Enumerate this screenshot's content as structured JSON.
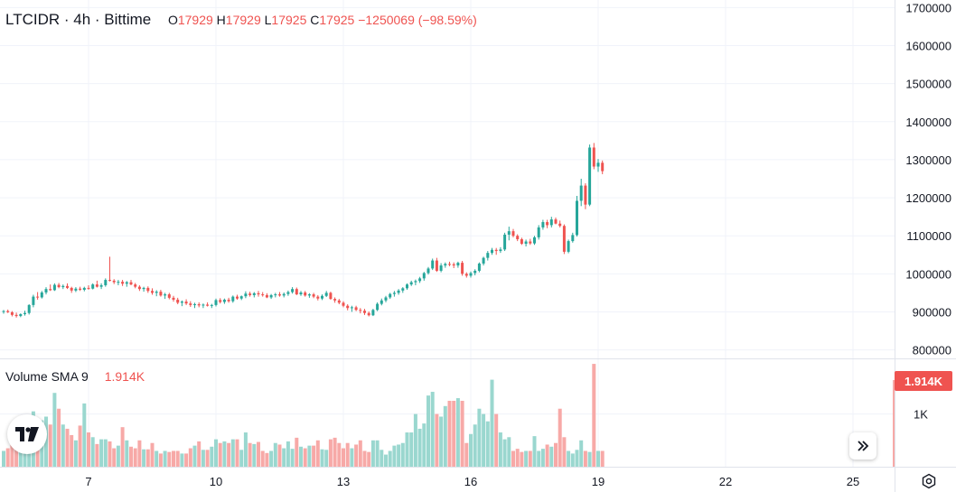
{
  "header": {
    "symbol_line": "LTCIDR · 4h · Bittime",
    "open_label": "O",
    "open_value": "17929",
    "high_label": "H",
    "high_value": "17929",
    "low_label": "L",
    "low_value": "17925",
    "close_label": "C",
    "close_value": "17925",
    "change": "−1250069 (−98.59%)"
  },
  "volume_pane": {
    "title": "Volume SMA 9",
    "value": "1.914K",
    "badge": "1.914K",
    "axis_label": "1K"
  },
  "icons": {
    "logo": "tradingview-logo-icon",
    "scroll": "chevron-double-right-icon",
    "settings": "gear-icon"
  },
  "colors": {
    "up": "#26a69a",
    "down": "#ef5350",
    "volume_up": "#9ad7cf",
    "volume_down": "#f7a9a7",
    "grid": "#f0f3fa",
    "axis_text": "#131722"
  },
  "chart_data": {
    "type": "candlestick",
    "interval": "4h",
    "price_axis": {
      "range": [
        780000,
        1720000
      ],
      "ticks": [
        800000,
        900000,
        1000000,
        1100000,
        1200000,
        1300000,
        1400000,
        1500000,
        1600000,
        1700000
      ]
    },
    "x_axis": {
      "tick_labels": [
        "7",
        "10",
        "13",
        "16",
        "19",
        "22",
        "25"
      ],
      "tick_candle_index": [
        20,
        50,
        80,
        110,
        140,
        170,
        200
      ]
    },
    "grid": true,
    "volume_max": 1900,
    "volume_ticks": [
      {
        "value": 1000,
        "label": "1K"
      }
    ],
    "candles": [
      [
        900000,
        905000,
        895000,
        902000,
        300
      ],
      [
        902000,
        906000,
        897000,
        899000,
        350
      ],
      [
        899000,
        902000,
        888000,
        892000,
        480
      ],
      [
        892000,
        898000,
        885000,
        889000,
        360
      ],
      [
        889000,
        896000,
        886000,
        894000,
        400
      ],
      [
        894000,
        903000,
        890000,
        897000,
        380
      ],
      [
        897000,
        920000,
        893000,
        918000,
        700
      ],
      [
        918000,
        945000,
        912000,
        940000,
        1050
      ],
      [
        940000,
        952000,
        932000,
        938000,
        900
      ],
      [
        938000,
        955000,
        935000,
        951000,
        880
      ],
      [
        951000,
        965000,
        946000,
        960000,
        950
      ],
      [
        960000,
        972000,
        955000,
        957000,
        800
      ],
      [
        957000,
        975000,
        955000,
        971000,
        1400
      ],
      [
        971000,
        976000,
        962000,
        965000,
        1100
      ],
      [
        965000,
        972000,
        960000,
        968000,
        800
      ],
      [
        968000,
        975000,
        960000,
        963000,
        720
      ],
      [
        963000,
        966000,
        950000,
        956000,
        600
      ],
      [
        956000,
        965000,
        952000,
        961000,
        500
      ],
      [
        961000,
        966000,
        955000,
        958000,
        780
      ],
      [
        958000,
        966000,
        954000,
        963000,
        1200
      ],
      [
        963000,
        970000,
        958000,
        961000,
        650
      ],
      [
        961000,
        975000,
        959000,
        972000,
        560
      ],
      [
        972000,
        982000,
        964000,
        966000,
        430
      ],
      [
        966000,
        975000,
        960000,
        970000,
        520
      ],
      [
        970000,
        988000,
        966000,
        984000,
        520
      ],
      [
        984000,
        1045000,
        980000,
        982000,
        480
      ],
      [
        982000,
        986000,
        973000,
        978000,
        350
      ],
      [
        978000,
        984000,
        970000,
        979000,
        400
      ],
      [
        979000,
        984000,
        968000,
        974000,
        750
      ],
      [
        974000,
        981000,
        966000,
        978000,
        500
      ],
      [
        978000,
        984000,
        970000,
        972000,
        380
      ],
      [
        972000,
        976000,
        962000,
        966000,
        350
      ],
      [
        966000,
        970000,
        955000,
        960000,
        500
      ],
      [
        960000,
        966000,
        953000,
        963000,
        330
      ],
      [
        963000,
        967000,
        950000,
        955000,
        330
      ],
      [
        955000,
        962000,
        945000,
        950000,
        450
      ],
      [
        950000,
        957000,
        941000,
        953000,
        300
      ],
      [
        953000,
        958000,
        940000,
        943000,
        250
      ],
      [
        943000,
        950000,
        934000,
        946000,
        300
      ],
      [
        946000,
        950000,
        933000,
        937000,
        280
      ],
      [
        937000,
        942000,
        927000,
        932000,
        300
      ],
      [
        932000,
        937000,
        920000,
        924000,
        300
      ],
      [
        924000,
        930000,
        915000,
        927000,
        250
      ],
      [
        927000,
        933000,
        918000,
        922000,
        250
      ],
      [
        922000,
        928000,
        913000,
        918000,
        350
      ],
      [
        918000,
        924000,
        910000,
        920000,
        400
      ],
      [
        920000,
        925000,
        912000,
        917000,
        480
      ],
      [
        917000,
        922000,
        910000,
        919000,
        320
      ],
      [
        919000,
        925000,
        914000,
        916000,
        320
      ],
      [
        916000,
        921000,
        910000,
        918000,
        380
      ],
      [
        918000,
        935000,
        914000,
        931000,
        520
      ],
      [
        931000,
        936000,
        922000,
        926000,
        450
      ],
      [
        926000,
        935000,
        921000,
        932000,
        480
      ],
      [
        932000,
        937000,
        924000,
        928000,
        450
      ],
      [
        928000,
        943000,
        924000,
        940000,
        520
      ],
      [
        940000,
        945000,
        932000,
        935000,
        520
      ],
      [
        935000,
        943000,
        931000,
        941000,
        320
      ],
      [
        941000,
        954000,
        936000,
        948000,
        650
      ],
      [
        948000,
        953000,
        940000,
        944000,
        450
      ],
      [
        944000,
        952000,
        938000,
        949000,
        430
      ],
      [
        949000,
        955000,
        940000,
        946000,
        470
      ],
      [
        946000,
        952000,
        940000,
        944000,
        300
      ],
      [
        944000,
        949000,
        936000,
        938000,
        260
      ],
      [
        938000,
        947000,
        934000,
        944000,
        300
      ],
      [
        944000,
        950000,
        938000,
        946000,
        450
      ],
      [
        946000,
        952000,
        940000,
        943000,
        420
      ],
      [
        943000,
        951000,
        938000,
        947000,
        350
      ],
      [
        947000,
        956000,
        942000,
        952000,
        480
      ],
      [
        952000,
        965000,
        948000,
        960000,
        340
      ],
      [
        960000,
        964000,
        944000,
        946000,
        550
      ],
      [
        946000,
        955000,
        942000,
        951000,
        380
      ],
      [
        951000,
        955000,
        940000,
        943000,
        350
      ],
      [
        943000,
        949000,
        937000,
        946000,
        400
      ],
      [
        946000,
        950000,
        936000,
        940000,
        400
      ],
      [
        940000,
        944000,
        930000,
        935000,
        500
      ],
      [
        935000,
        946000,
        931000,
        942000,
        330
      ],
      [
        942000,
        955000,
        939000,
        950000,
        320
      ],
      [
        950000,
        953000,
        932000,
        934000,
        520
      ],
      [
        934000,
        938000,
        924000,
        930000,
        550
      ],
      [
        930000,
        934000,
        920000,
        924000,
        450
      ],
      [
        924000,
        928000,
        912000,
        916000,
        350
      ],
      [
        916000,
        920000,
        904000,
        910000,
        450
      ],
      [
        910000,
        916000,
        900000,
        912000,
        350
      ],
      [
        912000,
        916000,
        902000,
        905000,
        420
      ],
      [
        905000,
        910000,
        896000,
        903000,
        500
      ],
      [
        903000,
        908000,
        892000,
        897000,
        300
      ],
      [
        897000,
        901000,
        888000,
        891000,
        280
      ],
      [
        891000,
        908000,
        889000,
        905000,
        500
      ],
      [
        905000,
        925000,
        902000,
        921000,
        500
      ],
      [
        921000,
        935000,
        917000,
        930000,
        320
      ],
      [
        930000,
        942000,
        925000,
        938000,
        230
      ],
      [
        938000,
        950000,
        934000,
        947000,
        300
      ],
      [
        947000,
        955000,
        940000,
        950000,
        400
      ],
      [
        950000,
        960000,
        945000,
        956000,
        420
      ],
      [
        956000,
        965000,
        950000,
        962000,
        450
      ],
      [
        962000,
        975000,
        958000,
        972000,
        650
      ],
      [
        972000,
        982000,
        968000,
        978000,
        650
      ],
      [
        978000,
        985000,
        970000,
        981000,
        1000
      ],
      [
        981000,
        992000,
        976000,
        988000,
        720
      ],
      [
        988000,
        1005000,
        982000,
        1002000,
        820
      ],
      [
        1002000,
        1018000,
        998000,
        1014000,
        1350
      ],
      [
        1014000,
        1040000,
        1010000,
        1035000,
        1420
      ],
      [
        1035000,
        1042000,
        1005000,
        1008000,
        1000
      ],
      [
        1008000,
        1028000,
        1004000,
        1022000,
        950
      ],
      [
        1022000,
        1030000,
        1016000,
        1026000,
        1150
      ],
      [
        1026000,
        1032000,
        1020000,
        1025000,
        1250
      ],
      [
        1025000,
        1030000,
        1015000,
        1022000,
        1250
      ],
      [
        1022000,
        1032000,
        1016000,
        1029000,
        1300
      ],
      [
        1029000,
        1034000,
        995000,
        1000000,
        1250
      ],
      [
        1000000,
        1004000,
        990000,
        995000,
        450
      ],
      [
        995000,
        1006000,
        990000,
        1002000,
        620
      ],
      [
        1002000,
        1012000,
        996000,
        1008000,
        800
      ],
      [
        1008000,
        1030000,
        1004000,
        1027000,
        1100
      ],
      [
        1027000,
        1045000,
        1022000,
        1042000,
        1000
      ],
      [
        1042000,
        1060000,
        1035000,
        1055000,
        860
      ],
      [
        1055000,
        1068000,
        1050000,
        1063000,
        1650
      ],
      [
        1063000,
        1068000,
        1050000,
        1060000,
        1000
      ],
      [
        1060000,
        1070000,
        1055000,
        1064000,
        650
      ],
      [
        1064000,
        1108000,
        1060000,
        1103000,
        520
      ],
      [
        1103000,
        1124000,
        1088000,
        1112000,
        560
      ],
      [
        1112000,
        1118000,
        1096000,
        1100000,
        300
      ],
      [
        1100000,
        1104000,
        1086000,
        1091000,
        340
      ],
      [
        1091000,
        1095000,
        1076000,
        1079000,
        280
      ],
      [
        1079000,
        1090000,
        1072000,
        1085000,
        300
      ],
      [
        1085000,
        1092000,
        1076000,
        1080000,
        300
      ],
      [
        1080000,
        1100000,
        1076000,
        1096000,
        580
      ],
      [
        1096000,
        1128000,
        1090000,
        1122000,
        300
      ],
      [
        1122000,
        1142000,
        1116000,
        1136000,
        340
      ],
      [
        1136000,
        1142000,
        1120000,
        1128000,
        420
      ],
      [
        1128000,
        1150000,
        1122000,
        1143000,
        380
      ],
      [
        1143000,
        1148000,
        1130000,
        1132000,
        450
      ],
      [
        1132000,
        1140000,
        1122000,
        1126000,
        1100
      ],
      [
        1126000,
        1130000,
        1052000,
        1058000,
        560
      ],
      [
        1058000,
        1090000,
        1054000,
        1086000,
        300
      ],
      [
        1086000,
        1108000,
        1082000,
        1102000,
        250
      ],
      [
        1102000,
        1205000,
        1098000,
        1192000,
        320
      ],
      [
        1192000,
        1250000,
        1178000,
        1232000,
        500
      ],
      [
        1232000,
        1238000,
        1170000,
        1182000,
        300
      ],
      [
        1182000,
        1340000,
        1178000,
        1332000,
        280
      ],
      [
        1332000,
        1344000,
        1275000,
        1282000,
        1950
      ],
      [
        1282000,
        1302000,
        1268000,
        1292000,
        300
      ],
      [
        1292000,
        1298000,
        1262000,
        1270000,
        300
      ]
    ]
  }
}
